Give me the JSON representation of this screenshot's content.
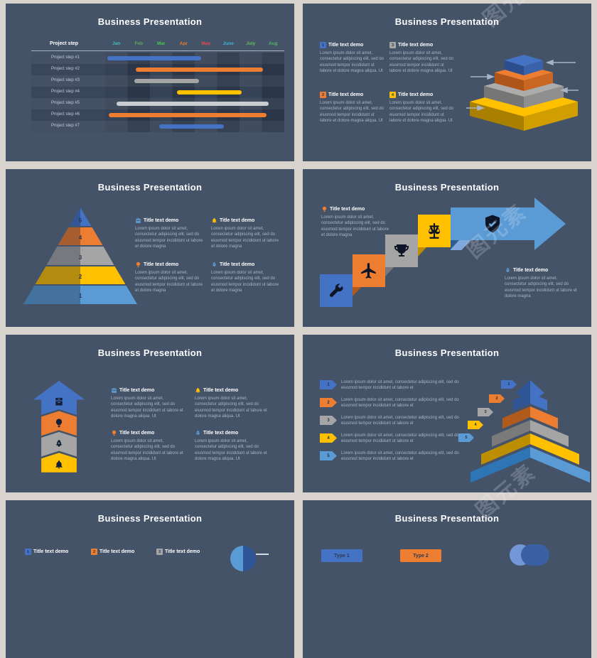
{
  "page": {
    "background": "#D8D3CD",
    "slide_background": "#455368"
  },
  "palette": {
    "blue": "#4472C4",
    "orange": "#ED7D31",
    "gray": "#A5A5A5",
    "yellow": "#FFC000",
    "lightblue": "#5B9BD5",
    "title_text": "#FDFDFD",
    "body_text": "#A9B4C6"
  },
  "watermark": {
    "text": "图元素"
  },
  "common": {
    "title": "Business Presentation",
    "demo_title": "Title text demo",
    "lorem_full": "Lorem ipsum dolor sit amet, consectetur adipiscing elit, sed do eiusmod tempor incididunt ut labore et dolore magna aliqua. Ut",
    "lorem_medium": "Lorem ipsum dolor sit amet, consectetur adipiscing elit, sed do eiusmod tempor incididunt ut labore et dolore magna",
    "lorem_short": "Lorem ipsum dolor sit amet, consectetur adipiscing elit, sed do eiusmod tempor incididunt ut labore et"
  },
  "chart_data": [
    {
      "type": "gantt",
      "title": "Business Presentation",
      "row_label_header": "Project step",
      "columns": [
        "Jan",
        "Feb",
        "Mar",
        "Apr",
        "May",
        "June",
        "July",
        "Aug"
      ],
      "column_colors": [
        "#3FBFBC",
        "#61A85B",
        "#49C94E",
        "#ED7D31",
        "#E84B4B",
        "#3FB3D8",
        "#62BE58",
        "#4FB863"
      ],
      "x_range": [
        0,
        8
      ],
      "rows": [
        {
          "label": "Project step #1",
          "color": "#4472C4",
          "start": 0.1,
          "end": 4.3
        },
        {
          "label": "Project step #2",
          "color": "#ED7D31",
          "start": 1.35,
          "end": 7.05
        },
        {
          "label": "Project step #3",
          "color": "#A5A5A5",
          "start": 1.3,
          "end": 4.2
        },
        {
          "label": "Project step #4",
          "color": "#FFC000",
          "start": 3.2,
          "end": 6.1
        },
        {
          "label": "Project step #5",
          "color": "#C9CDD2",
          "start": 0.5,
          "end": 7.3
        },
        {
          "label": "Project step #6",
          "color": "#ED7D31",
          "start": 0.15,
          "end": 7.2
        },
        {
          "label": "Project step #7",
          "color": "#4472C4",
          "start": 2.4,
          "end": 5.3
        }
      ]
    }
  ],
  "slides": {
    "s2": {
      "items": [
        {
          "num": "1",
          "color": "#4472C4"
        },
        {
          "num": "3",
          "color": "#A5A5A5"
        },
        {
          "num": "2",
          "color": "#ED7D31"
        },
        {
          "num": "4",
          "color": "#FFC000"
        }
      ],
      "pyramid_layers_top_to_bottom": [
        "#4472C4",
        "#ED7D31",
        "#A5A5A5",
        "#FFC000"
      ]
    },
    "s3": {
      "pyramid_levels": [
        {
          "num": "5",
          "color": "#4472C4"
        },
        {
          "num": "4",
          "color": "#ED7D31"
        },
        {
          "num": "3",
          "color": "#A5A5A5"
        },
        {
          "num": "2",
          "color": "#FFC000"
        },
        {
          "num": "1",
          "color": "#5B9BD5"
        }
      ],
      "items": [
        {
          "icon": "briefcase-icon",
          "color": "#5B9BD5"
        },
        {
          "icon": "bell-icon",
          "color": "#FFC000"
        },
        {
          "icon": "bulb-icon",
          "color": "#ED7D31"
        },
        {
          "icon": "rocket-icon",
          "color": "#5B9BD5"
        }
      ]
    },
    "s4": {
      "steps": [
        {
          "icon": "wrench-icon",
          "color": "#4472C4"
        },
        {
          "icon": "plane-icon",
          "color": "#ED7D31"
        },
        {
          "icon": "trophy-icon",
          "color": "#A5A5A5"
        },
        {
          "icon": "scales-icon",
          "color": "#FFC000"
        },
        {
          "icon": "shield-icon",
          "color": "#5B9BD5"
        }
      ]
    },
    "s5": {
      "tower_segments": [
        {
          "icon": "archive-icon",
          "color": "#4472C4"
        },
        {
          "icon": "bulb-icon",
          "color": "#ED7D31"
        },
        {
          "icon": "rocket-icon",
          "color": "#A5A5A5"
        },
        {
          "icon": "bell-icon",
          "color": "#FFC000"
        }
      ],
      "items": [
        {
          "icon": "briefcase-icon",
          "color": "#5B9BD5"
        },
        {
          "icon": "bell-icon",
          "color": "#FFC000"
        },
        {
          "icon": "bulb-icon",
          "color": "#ED7D31"
        },
        {
          "icon": "rocket-icon",
          "color": "#5B9BD5"
        }
      ]
    },
    "s6": {
      "steps": [
        {
          "num": "1",
          "color": "#4472C4"
        },
        {
          "num": "2",
          "color": "#ED7D31"
        },
        {
          "num": "3",
          "color": "#A5A5A5"
        },
        {
          "num": "4",
          "color": "#FFC000"
        },
        {
          "num": "5",
          "color": "#5B9BD5"
        }
      ]
    },
    "s7": {
      "items": [
        {
          "num": "1",
          "color": "#4472C4"
        },
        {
          "num": "2",
          "color": "#ED7D31"
        },
        {
          "num": "3",
          "color": "#A5A5A5"
        }
      ]
    },
    "s8": {
      "buttons": [
        {
          "label": "Type 1",
          "color": "#4472C4"
        },
        {
          "label": "Type 2",
          "color": "#ED7D31"
        }
      ]
    }
  }
}
